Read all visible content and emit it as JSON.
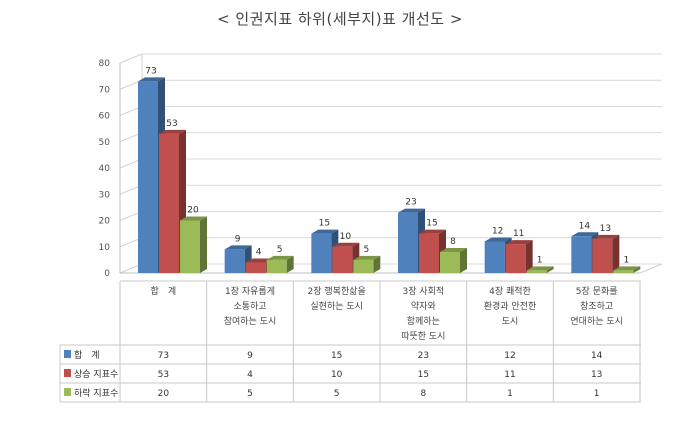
{
  "title": "< 인권지표 하위(세부지)표 개선도 >",
  "chart_data": {
    "type": "bar",
    "title": "< 인권지표 하위(세부지)표 개선도 >",
    "ylim": [
      0,
      80
    ],
    "yticks": [
      0,
      10,
      20,
      30,
      40,
      50,
      60,
      70,
      80
    ],
    "grid": true,
    "legend": "data-table-left",
    "categories": [
      [
        "합　계"
      ],
      [
        "1장 자유롭게",
        "소통하고",
        "참여하는 도시"
      ],
      [
        "2장 행복한삶을",
        "실현하는 도시"
      ],
      [
        "3장 사회적",
        "약자와",
        "함께하는",
        "따뜻한 도시"
      ],
      [
        "4장 쾌적한",
        "환경과 안전한",
        "도시"
      ],
      [
        "5장 문화를",
        "창조하고",
        "연대하는 도시"
      ]
    ],
    "series": [
      {
        "name": "합　계",
        "color": "#4f81bd",
        "values": [
          73,
          9,
          15,
          23,
          12,
          14
        ]
      },
      {
        "name": "상승 지표수",
        "color": "#c0504d",
        "values": [
          53,
          4,
          10,
          15,
          11,
          13
        ]
      },
      {
        "name": "하락 지표수",
        "color": "#9bbb59",
        "values": [
          20,
          5,
          5,
          8,
          1,
          1
        ]
      }
    ]
  }
}
